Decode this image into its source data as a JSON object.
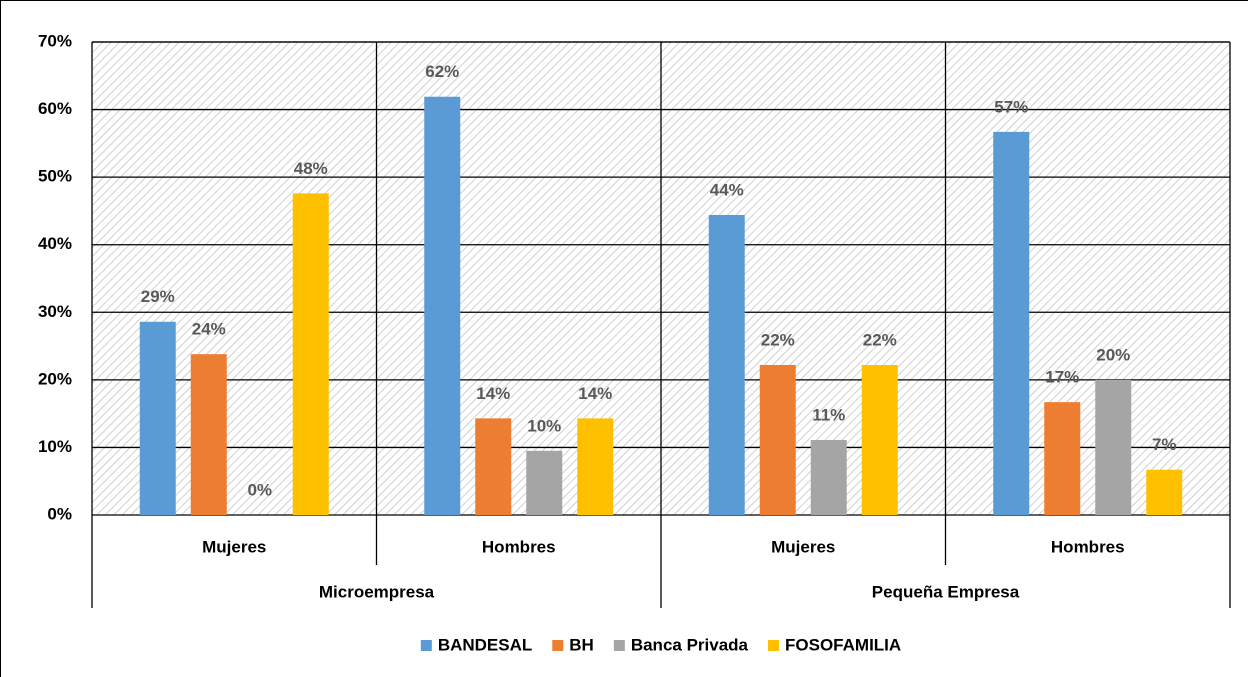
{
  "chart_data": {
    "type": "bar",
    "categories": [
      "Mujeres",
      "Hombres",
      "Mujeres",
      "Hombres"
    ],
    "groups": [
      "Microempresa",
      "Pequeña Empresa"
    ],
    "series": [
      {
        "name": "BANDESAL",
        "color": "#5b9bd5",
        "values": [
          28.6,
          61.9,
          44.4,
          56.7
        ],
        "value_labels": [
          "29%",
          "62%",
          "44%",
          "57%"
        ]
      },
      {
        "name": "BH",
        "color": "#ed7d31",
        "values": [
          23.8,
          14.3,
          22.2,
          16.7
        ],
        "value_labels": [
          "24%",
          "14%",
          "22%",
          "17%"
        ]
      },
      {
        "name": "Banca Privada",
        "color": "#a5a5a5",
        "values": [
          0,
          9.5,
          11.1,
          20
        ],
        "value_labels": [
          "0%",
          "10%",
          "11%",
          "20%"
        ]
      },
      {
        "name": "FOSOFAMILIA",
        "color": "#ffc000",
        "values": [
          47.6,
          14.3,
          22.2,
          6.7
        ],
        "value_labels": [
          "48%",
          "14%",
          "22%",
          "7%"
        ]
      }
    ],
    "ylim": [
      0,
      70
    ],
    "yticks": [
      {
        "value": 0,
        "label": "0%"
      },
      {
        "value": 10,
        "label": "10%"
      },
      {
        "value": 20,
        "label": "20%"
      },
      {
        "value": 30,
        "label": "30%"
      },
      {
        "value": 40,
        "label": "40%"
      },
      {
        "value": 50,
        "label": "50%"
      },
      {
        "value": 60,
        "label": "60%"
      },
      {
        "value": 70,
        "label": "70%"
      }
    ],
    "grid": true,
    "legend": "bottom"
  }
}
